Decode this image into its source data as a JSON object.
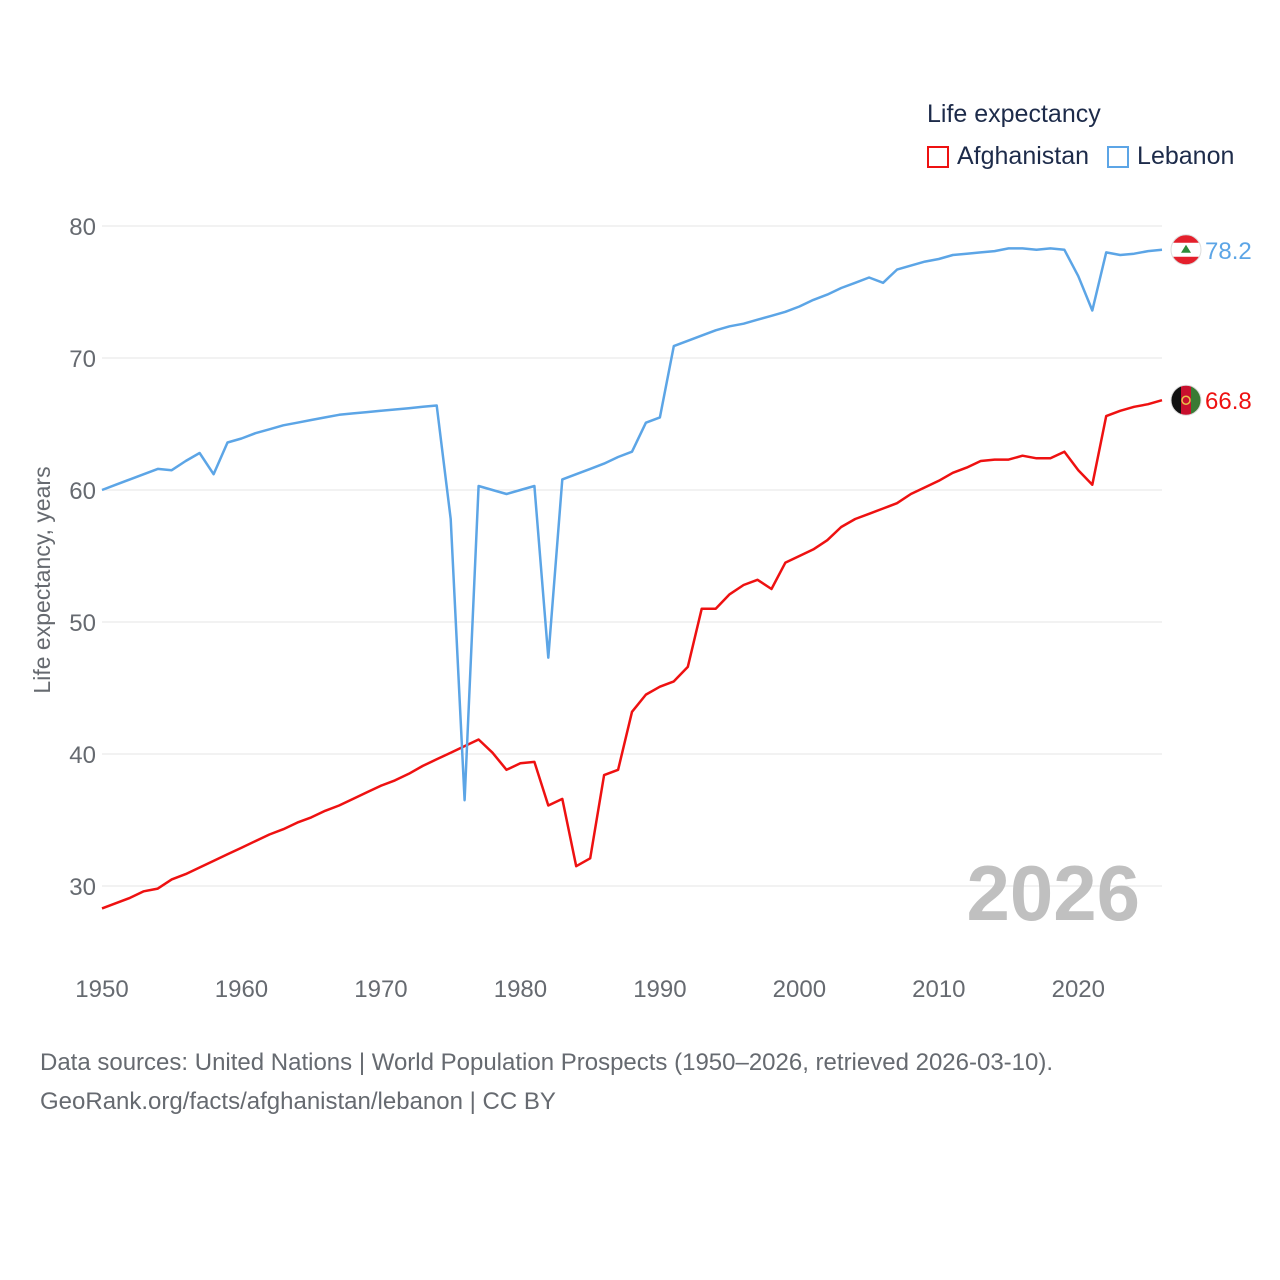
{
  "legend": {
    "title": "Life expectancy"
  },
  "footer": {
    "line1": "Data sources: United Nations | World Population Prospects (1950–2026, retrieved 2026-03-10).",
    "line2": "GeoRank.org/facts/afghanistan/lebanon | CC BY"
  },
  "chart_data": {
    "type": "line",
    "title": "Life expectancy",
    "xlabel": "",
    "ylabel": "Life expectancy, years",
    "xlim": [
      1950,
      2026
    ],
    "ylim": [
      25,
      82
    ],
    "yticks": [
      30,
      40,
      50,
      60,
      70,
      80
    ],
    "xticks": [
      1950,
      1960,
      1970,
      1980,
      1990,
      2000,
      2010,
      2020
    ],
    "grid": true,
    "year_label": "2026",
    "x": [
      1950,
      1951,
      1952,
      1953,
      1954,
      1955,
      1956,
      1957,
      1958,
      1959,
      1960,
      1961,
      1962,
      1963,
      1964,
      1965,
      1966,
      1967,
      1968,
      1969,
      1970,
      1971,
      1972,
      1973,
      1974,
      1975,
      1976,
      1977,
      1978,
      1979,
      1980,
      1981,
      1982,
      1983,
      1984,
      1985,
      1986,
      1987,
      1988,
      1989,
      1990,
      1991,
      1992,
      1993,
      1994,
      1995,
      1996,
      1997,
      1998,
      1999,
      2000,
      2001,
      2002,
      2003,
      2004,
      2005,
      2006,
      2007,
      2008,
      2009,
      2010,
      2011,
      2012,
      2013,
      2014,
      2015,
      2016,
      2017,
      2018,
      2019,
      2020,
      2021,
      2022,
      2023,
      2024,
      2025,
      2026
    ],
    "series": [
      {
        "name": "Afghanistan",
        "color": "#ee1111",
        "end_label": "66.8",
        "flag": "afghanistan-flag",
        "values": [
          28.3,
          28.7,
          29.1,
          29.6,
          29.8,
          30.5,
          30.9,
          31.4,
          31.9,
          32.4,
          32.9,
          33.4,
          33.9,
          34.3,
          34.8,
          35.2,
          35.7,
          36.1,
          36.6,
          37.1,
          37.6,
          38.0,
          38.5,
          39.1,
          39.6,
          40.1,
          40.6,
          41.1,
          40.1,
          38.8,
          39.3,
          39.4,
          36.1,
          36.6,
          31.5,
          32.1,
          38.4,
          38.8,
          43.2,
          44.5,
          45.1,
          45.5,
          46.6,
          51.0,
          51.0,
          52.1,
          52.8,
          53.2,
          52.5,
          54.5,
          55.0,
          55.5,
          56.2,
          57.2,
          57.8,
          58.2,
          58.6,
          59.0,
          59.7,
          60.2,
          60.7,
          61.3,
          61.7,
          62.2,
          62.3,
          62.3,
          62.6,
          62.4,
          62.4,
          62.9,
          61.5,
          60.4,
          65.6,
          66.0,
          66.3,
          66.5,
          66.8
        ]
      },
      {
        "name": "Lebanon",
        "color": "#5ca5e6",
        "end_label": "78.2",
        "flag": "lebanon-flag",
        "values": [
          60.0,
          60.4,
          60.8,
          61.2,
          61.6,
          61.5,
          62.2,
          62.8,
          61.2,
          63.6,
          63.9,
          64.3,
          64.6,
          64.9,
          65.1,
          65.3,
          65.5,
          65.7,
          65.8,
          65.9,
          66.0,
          66.1,
          66.2,
          66.3,
          66.4,
          57.8,
          36.5,
          60.3,
          60.0,
          59.7,
          60.0,
          60.3,
          47.3,
          60.8,
          61.2,
          61.6,
          62.0,
          62.5,
          62.9,
          65.1,
          65.5,
          70.9,
          71.3,
          71.7,
          72.1,
          72.4,
          72.6,
          72.9,
          73.2,
          73.5,
          73.9,
          74.4,
          74.8,
          75.3,
          75.7,
          76.1,
          75.7,
          76.7,
          77.0,
          77.3,
          77.5,
          77.8,
          77.9,
          78.0,
          78.1,
          78.3,
          78.3,
          78.2,
          78.3,
          78.2,
          76.2,
          73.6,
          78.0,
          77.8,
          77.9,
          78.1,
          78.2
        ]
      }
    ]
  }
}
